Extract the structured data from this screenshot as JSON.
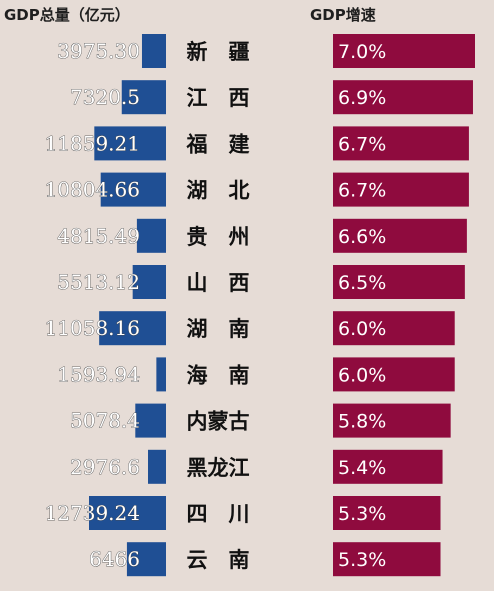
{
  "headers": {
    "gdp_total": "GDP总量（亿元）",
    "gdp_growth": "GDP增速"
  },
  "colors": {
    "background": "#e6dcd6",
    "gdp_bar": "#1f4f94",
    "growth_bar": "#8f0b3e"
  },
  "chart_data": {
    "type": "bar",
    "categories": [
      "新　疆",
      "江　西",
      "福　建",
      "湖　北",
      "贵　州",
      "山　西",
      "湖　南",
      "海　南",
      "内蒙古",
      "黑龙江",
      "四　川",
      "云　南"
    ],
    "series": [
      {
        "name": "GDP总量（亿元）",
        "values": [
          3975.3,
          7320.5,
          11859.21,
          10804.66,
          4815.49,
          5513.12,
          11058.16,
          1593.94,
          5078.4,
          2976.6,
          12739.24,
          6466
        ],
        "labels": [
          "3975.30",
          "7320.5",
          "11859.21",
          "10804.66",
          "4815.49",
          "5513.12",
          "11058.16",
          "1593.94",
          "5078.4",
          "2976.6",
          "12739.24",
          "6466"
        ]
      },
      {
        "name": "GDP增速",
        "values": [
          7.0,
          6.9,
          6.7,
          6.7,
          6.6,
          6.5,
          6.0,
          6.0,
          5.8,
          5.4,
          5.3,
          5.3
        ],
        "labels": [
          "7.0%",
          "6.9%",
          "6.7%",
          "6.7%",
          "6.6%",
          "6.5%",
          "6.0%",
          "6.0%",
          "5.8%",
          "5.4%",
          "5.3%",
          "5.3%"
        ]
      }
    ]
  }
}
